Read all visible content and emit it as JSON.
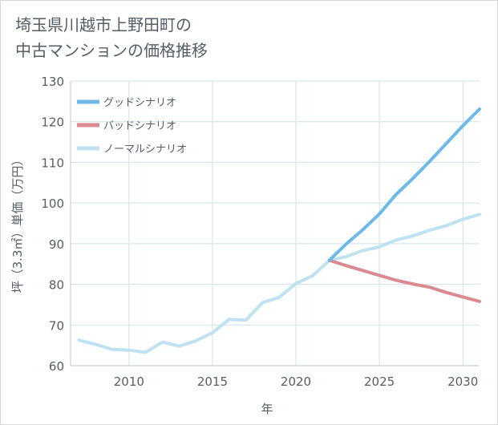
{
  "title_lines": [
    "埼玉県川越市上野田町の",
    "中古マンションの価格推移"
  ],
  "chart_data": {
    "type": "line",
    "title": "埼玉県川越市上野田町の中古マンションの価格推移",
    "xlabel": "年",
    "ylabel": "坪（3.3㎡）単価（万円）",
    "xlim": [
      2006.5,
      2031
    ],
    "ylim": [
      60,
      130
    ],
    "x_ticks": [
      2010,
      2015,
      2020,
      2025,
      2030
    ],
    "y_ticks": [
      60,
      70,
      80,
      90,
      100,
      110,
      120,
      130
    ],
    "grid": true,
    "legend_position": "top-left",
    "series": [
      {
        "name": "グッドシナリオ",
        "color": "#6cb9ea",
        "x": [
          2022,
          2023,
          2024,
          2025,
          2026,
          2027,
          2028,
          2029,
          2030,
          2031
        ],
        "values": [
          85.9,
          89.9,
          93.4,
          97.3,
          102.1,
          106.0,
          110.2,
          114.6,
          119.0,
          123.1
        ]
      },
      {
        "name": "バッドシナリオ",
        "color": "#dc8a91",
        "x": [
          2022,
          2023,
          2024,
          2025,
          2026,
          2027,
          2028,
          2029,
          2030,
          2031
        ],
        "values": [
          85.9,
          84.6,
          83.4,
          82.2,
          81.0,
          80.1,
          79.3,
          78.0,
          76.9,
          75.8
        ]
      },
      {
        "name": "ノーマルシナリオ",
        "color": "#bfe2f0",
        "x": [
          2007,
          2008,
          2009,
          2010,
          2011,
          2012,
          2013,
          2014,
          2015,
          2016,
          2017,
          2018,
          2019,
          2020,
          2021,
          2022,
          2023,
          2024,
          2025,
          2026,
          2027,
          2028,
          2029,
          2030,
          2031
        ],
        "values": [
          66.3,
          65.2,
          64.0,
          63.8,
          63.3,
          65.8,
          64.8,
          66.1,
          68.1,
          71.4,
          71.2,
          75.5,
          76.8,
          80.2,
          82.1,
          85.9,
          86.8,
          88.3,
          89.2,
          90.9,
          91.9,
          93.3,
          94.4,
          96.0,
          97.2
        ]
      }
    ]
  }
}
